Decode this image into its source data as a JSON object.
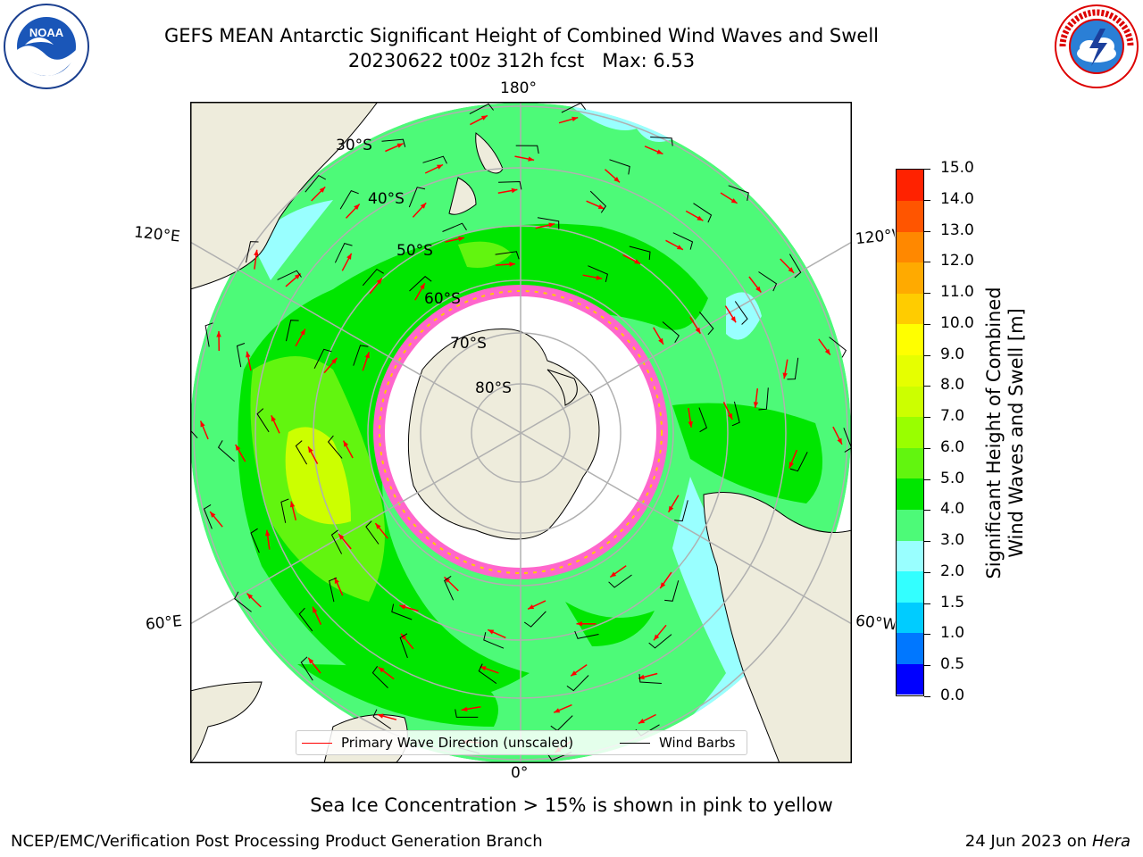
{
  "title": {
    "line1": "GEFS MEAN Antarctic Significant Height of Combined Wind Waves and Swell",
    "run": "20230622 t00z 312h fcst",
    "max": "Max: 6.53"
  },
  "map": {
    "projection": "south-polar-stereographic",
    "longitude_labels": {
      "top": "180°",
      "bottom": "0°",
      "upper_left": "120°E",
      "upper_right": "120°W",
      "lower_left": "60°E",
      "lower_right": "60°W"
    },
    "latitude_labels": [
      "30°S",
      "40°S",
      "50°S",
      "60°S",
      "70°S",
      "80°S"
    ],
    "colors": {
      "land": "#eeecdc",
      "ocean_3_4": "#4dfa78",
      "ocean_4_5": "#00e600",
      "ocean_5_6": "#62f50f",
      "ocean_6_7": "#ccff00",
      "ocean_2_3": "#99ffff",
      "sea_ice": "#ff66cc",
      "ice_shelf": "#ffffff",
      "grid": "#b0b0b0",
      "wave_arrow": "#ff0000",
      "wind_barb": "#000000"
    }
  },
  "colorbar": {
    "label_line1": "Significant Height of Combined",
    "label_line2": "Wind Waves and Swell [m]",
    "ticks": [
      "0.0",
      "0.5",
      "1.0",
      "1.5",
      "2.0",
      "3.0",
      "4.0",
      "5.0",
      "6.0",
      "7.0",
      "8.0",
      "9.0",
      "10.0",
      "11.0",
      "12.0",
      "13.0",
      "14.0",
      "15.0"
    ],
    "colors": [
      "#0000ff",
      "#0077ff",
      "#00ccff",
      "#33ffff",
      "#99ffff",
      "#4dfa78",
      "#00e600",
      "#62f50f",
      "#99ff00",
      "#ccff00",
      "#e6ff00",
      "#ffff00",
      "#ffcc00",
      "#ffaa00",
      "#ff8800",
      "#ff5500",
      "#ff2200"
    ]
  },
  "legend": {
    "wave": "Primary Wave Direction (unscaled)",
    "wind": "Wind Barbs"
  },
  "note": "Sea Ice Concentration > 15% is shown in pink to yellow",
  "footer": {
    "left": "NCEP/EMC/Verification Post Processing Product Generation Branch",
    "date": "24 Jun 2023 on",
    "host": "Hera"
  },
  "logos": {
    "left": "noaa-logo",
    "left_text": "NOAA",
    "right": "nws-logo",
    "right_text": "NATIONAL WEATHER SERVICE"
  }
}
